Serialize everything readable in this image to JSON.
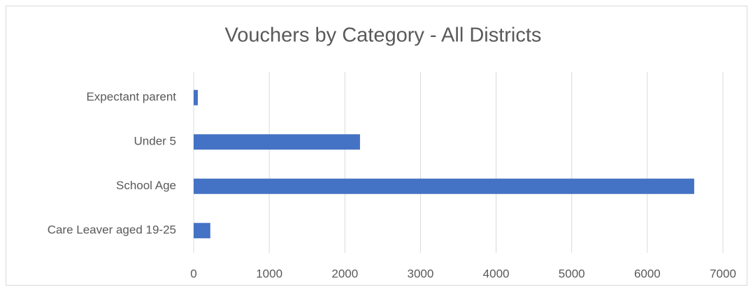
{
  "chart_data": {
    "type": "bar",
    "title": "Vouchers by Category - All Districts",
    "categories": [
      "Expectant parent",
      "Under 5",
      "School Age",
      "Care Leaver aged 19-25"
    ],
    "values": [
      55,
      2200,
      6620,
      220
    ],
    "color": "#4472c4",
    "xlim": [
      0,
      7000
    ],
    "xticks": [
      0,
      1000,
      2000,
      3000,
      4000,
      5000,
      6000,
      7000
    ],
    "grid": true
  }
}
